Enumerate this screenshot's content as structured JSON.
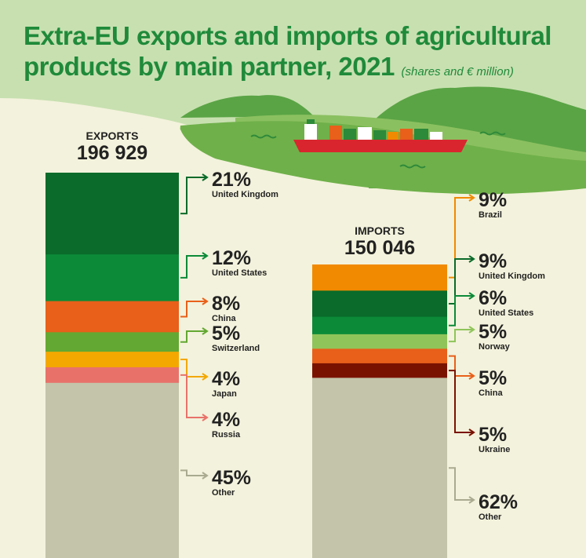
{
  "title": "Extra-EU exports and imports of agricultural products by main partner, 2021",
  "subtitle": "(shares and € million)",
  "colors": {
    "background": "#f3f2dc",
    "hills_light": "#c8e0b0",
    "hills_dark": "#5aa445",
    "title": "#1f8a3a",
    "ship_hull": "#d9262e"
  },
  "chart_data": [
    {
      "type": "bar",
      "subtype": "stacked-100-percent",
      "label": "EXPORTS",
      "total": "196 929",
      "unit": "€ million",
      "segments": [
        {
          "name": "United Kingdom",
          "value": 21,
          "label": "21%",
          "color": "#0a6b2a"
        },
        {
          "name": "United States",
          "value": 12,
          "label": "12%",
          "color": "#0c8a38"
        },
        {
          "name": "China",
          "value": 8,
          "label": "8%",
          "color": "#e8601a"
        },
        {
          "name": "Switzerland",
          "value": 5,
          "label": "5%",
          "color": "#63a832"
        },
        {
          "name": "Japan",
          "value": 4,
          "label": "4%",
          "color": "#f3a800"
        },
        {
          "name": "Russia",
          "value": 4,
          "label": "4%",
          "color": "#e8726a"
        },
        {
          "name": "Other",
          "value": 45,
          "label": "45%",
          "color": "#c3c4a9"
        }
      ]
    },
    {
      "type": "bar",
      "subtype": "stacked-100-percent",
      "label": "IMPORTS",
      "total": "150 046",
      "unit": "€ million",
      "segments": [
        {
          "name": "Brazil",
          "value": 9,
          "label": "9%",
          "color": "#f18a00"
        },
        {
          "name": "United Kingdom",
          "value": 9,
          "label": "9%",
          "color": "#0a6b2a"
        },
        {
          "name": "United States",
          "value": 6,
          "label": "6%",
          "color": "#0c8a38"
        },
        {
          "name": "Norway",
          "value": 5,
          "label": "5%",
          "color": "#8fc45a"
        },
        {
          "name": "China",
          "value": 5,
          "label": "5%",
          "color": "#e8601a"
        },
        {
          "name": "Ukraine",
          "value": 5,
          "label": "5%",
          "color": "#7a1200"
        },
        {
          "name": "Other",
          "value": 62,
          "label": "62%",
          "color": "#c3c4a9"
        }
      ]
    }
  ]
}
